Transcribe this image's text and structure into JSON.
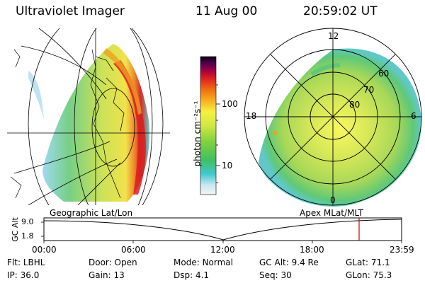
{
  "header": {
    "instrument": "Ultraviolet Imager",
    "date": "11 Aug 00",
    "time": "20:59:02 UT"
  },
  "colorbar": {
    "unit_label": "photon cm⁻²s⁻¹",
    "ticks": [
      "100",
      "10"
    ],
    "scale": "log"
  },
  "left_panel": {
    "caption": "Geographic Lat/Lon"
  },
  "right_panel": {
    "caption": "Apex MLat/MLT",
    "mlt_labels": [
      "12",
      "18",
      "6",
      "0"
    ],
    "lat_labels": [
      "60",
      "70",
      "80"
    ]
  },
  "timeline": {
    "ylabel": "GC Alt",
    "yticks": [
      "9.0",
      "1.8"
    ],
    "xticks": [
      "00:00",
      "06:00",
      "12:00",
      "18:00",
      "23:59"
    ],
    "marker_color": "#cc0000"
  },
  "info": {
    "row1": [
      {
        "label": "Flt:",
        "value": "LBHL"
      },
      {
        "label": "Door:",
        "value": "Open"
      },
      {
        "label": "Mode:",
        "value": "Normal"
      },
      {
        "label": "GC Alt:",
        "value": "9.4 Re"
      },
      {
        "label": "GLat:",
        "value": "71.1"
      }
    ],
    "row2": [
      {
        "label": "IP:",
        "value": "36.0"
      },
      {
        "label": "Gain:",
        "value": "13"
      },
      {
        "label": "Dsp:",
        "value": "4.1"
      },
      {
        "label": "Seq:",
        "value": "30"
      },
      {
        "label": "GLon:",
        "value": "75.3"
      }
    ]
  }
}
